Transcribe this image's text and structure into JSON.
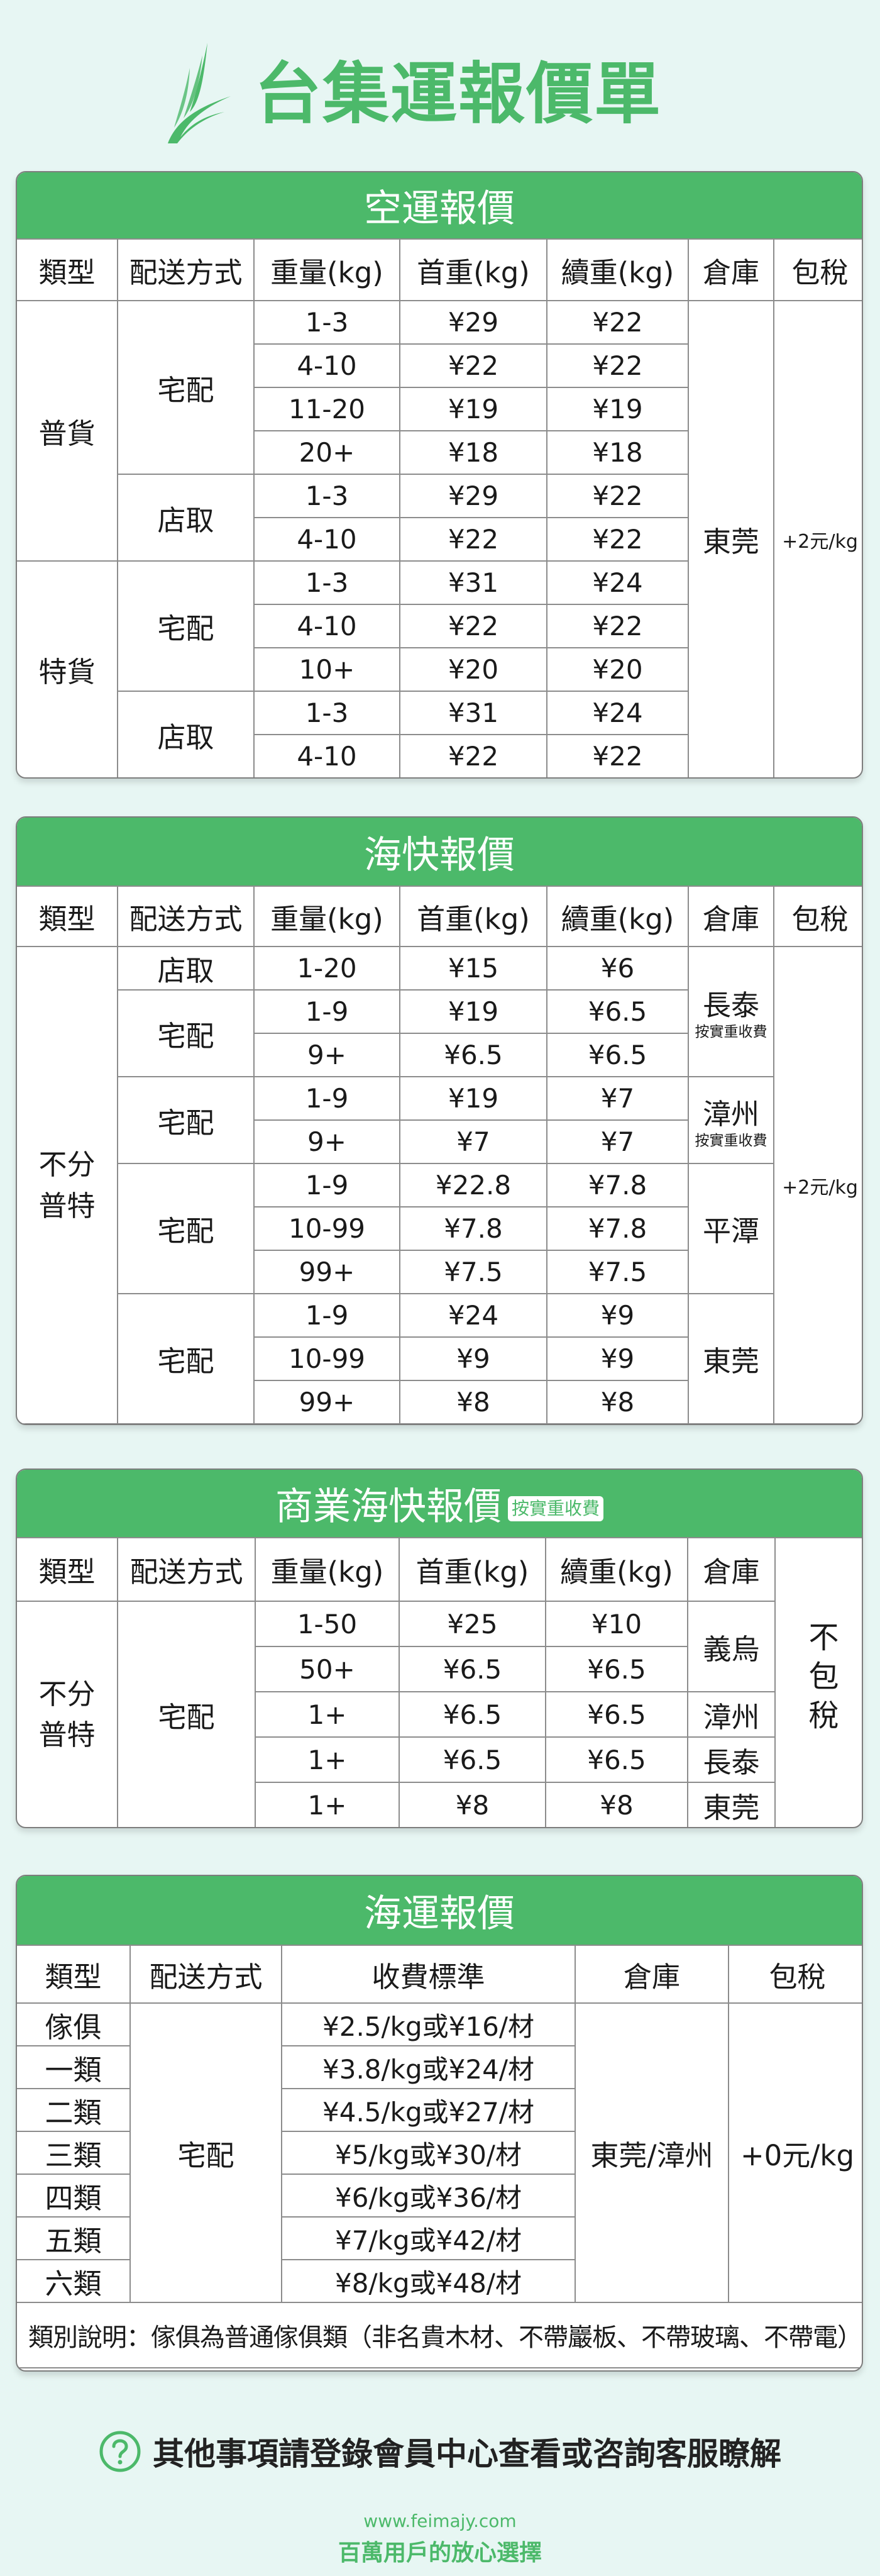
{
  "colors": {
    "brand": "#4cb96a",
    "background": "#e7f6f3"
  },
  "brand": {
    "title": "台集運報價單",
    "logo_icon": "wing-icon"
  },
  "air": {
    "title": "空運報價",
    "headers": [
      "類型",
      "配送方式",
      "重量(kg)",
      "首重(kg)",
      "續重(kg)",
      "倉庫",
      "包稅"
    ],
    "types": [
      "普貨",
      "特貨"
    ],
    "methods": [
      "宅配",
      "店取",
      "宅配",
      "店取"
    ],
    "warehouse": "東莞",
    "tax": "+2元/kg",
    "rows": [
      {
        "weight": "1-3",
        "first": "¥29",
        "additional": "¥22"
      },
      {
        "weight": "4-10",
        "first": "¥22",
        "additional": "¥22"
      },
      {
        "weight": "11-20",
        "first": "¥19",
        "additional": "¥19"
      },
      {
        "weight": "20+",
        "first": "¥18",
        "additional": "¥18"
      },
      {
        "weight": "1-3",
        "first": "¥29",
        "additional": "¥22"
      },
      {
        "weight": "4-10",
        "first": "¥22",
        "additional": "¥22"
      },
      {
        "weight": "1-3",
        "first": "¥31",
        "additional": "¥24"
      },
      {
        "weight": "4-10",
        "first": "¥22",
        "additional": "¥22"
      },
      {
        "weight": "10+",
        "first": "¥20",
        "additional": "¥20"
      },
      {
        "weight": "1-3",
        "first": "¥31",
        "additional": "¥24"
      },
      {
        "weight": "4-10",
        "first": "¥22",
        "additional": "¥22"
      }
    ]
  },
  "sea_express": {
    "title": "海快報價",
    "headers": [
      "類型",
      "配送方式",
      "重量(kg)",
      "首重(kg)",
      "續重(kg)",
      "倉庫",
      "包稅"
    ],
    "type": "不分\n普特",
    "methods": [
      "店取",
      "宅配",
      "宅配",
      "宅配",
      "宅配"
    ],
    "warehouses": [
      {
        "name": "長泰",
        "note": "按實重收費"
      },
      {
        "name": "漳州",
        "note": "按實重收費"
      },
      {
        "name": "平潭"
      },
      {
        "name": "東莞"
      }
    ],
    "tax": "+2元/kg",
    "rows": [
      {
        "weight": "1-20",
        "first": "¥15",
        "additional": "¥6"
      },
      {
        "weight": "1-9",
        "first": "¥19",
        "additional": "¥6.5"
      },
      {
        "weight": "9+",
        "first": "¥6.5",
        "additional": "¥6.5"
      },
      {
        "weight": "1-9",
        "first": "¥19",
        "additional": "¥7"
      },
      {
        "weight": "9+",
        "first": "¥7",
        "additional": "¥7"
      },
      {
        "weight": "1-9",
        "first": "¥22.8",
        "additional": "¥7.8"
      },
      {
        "weight": "10-99",
        "first": "¥7.8",
        "additional": "¥7.8"
      },
      {
        "weight": "99+",
        "first": "¥7.5",
        "additional": "¥7.5"
      },
      {
        "weight": "1-9",
        "first": "¥24",
        "additional": "¥9"
      },
      {
        "weight": "10-99",
        "first": "¥9",
        "additional": "¥9"
      },
      {
        "weight": "99+",
        "first": "¥8",
        "additional": "¥8"
      }
    ]
  },
  "commercial": {
    "title": "商業海快報價",
    "badge": "按實重收費",
    "headers": [
      "類型",
      "配送方式",
      "重量(kg)",
      "首重(kg)",
      "續重(kg)",
      "倉庫"
    ],
    "tax": "不包稅",
    "type": "不分\n普特",
    "method": "宅配",
    "warehouses": [
      "義烏",
      "漳州",
      "長泰",
      "東莞"
    ],
    "rows": [
      {
        "weight": "1-50",
        "first": "¥25",
        "additional": "¥10"
      },
      {
        "weight": "50+",
        "first": "¥6.5",
        "additional": "¥6.5"
      },
      {
        "weight": "1+",
        "first": "¥6.5",
        "additional": "¥6.5"
      },
      {
        "weight": "1+",
        "first": "¥6.5",
        "additional": "¥6.5"
      },
      {
        "weight": "1+",
        "first": "¥8",
        "additional": "¥8"
      }
    ]
  },
  "sea": {
    "title": "海運報價",
    "headers": [
      "類型",
      "配送方式",
      "收費標準",
      "倉庫",
      "包稅"
    ],
    "method": "宅配",
    "warehouse": "東莞/漳州",
    "tax": "+0元/kg",
    "rows": [
      {
        "type": "傢俱",
        "fee": "¥2.5/kg或¥16/材"
      },
      {
        "type": "一類",
        "fee": "¥3.8/kg或¥24/材"
      },
      {
        "type": "二類",
        "fee": "¥4.5/kg或¥27/材"
      },
      {
        "type": "三類",
        "fee": "¥5/kg或¥30/材"
      },
      {
        "type": "四類",
        "fee": "¥6/kg或¥36/材"
      },
      {
        "type": "五類",
        "fee": "¥7/kg或¥42/材"
      },
      {
        "type": "六類",
        "fee": "¥8/kg或¥48/材"
      }
    ],
    "note": "類別說明：傢俱為普通傢俱類（非名貴木材、不帶巖板、不帶玻璃、不帶電）"
  },
  "footer": {
    "icon": "question-circle-icon",
    "message": "其他事項請登錄會員中心查看或咨詢客服瞭解",
    "website": "www.feimajy.com",
    "slogan": "百萬用戶的放心選擇"
  }
}
